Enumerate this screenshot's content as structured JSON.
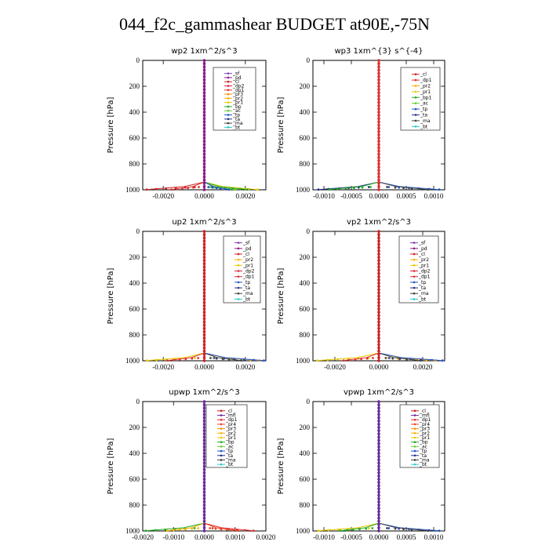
{
  "title": "044_f2c_gammashear  BUDGET at90E,-75N",
  "colors": {
    "sf": "#7f3fbf",
    "pd": "#8b1a8b",
    "cl": "#cc2222",
    "dp2": "#dd2244",
    "dp1": "#e03030",
    "pr3": "#ff8c00",
    "pr2": "#ffb000",
    "pr1": "#e6c800",
    "bp": "#22aa22",
    "ac": "#66cc33",
    "tp": "#2255cc",
    "ta": "#223388",
    "ma": "#444444",
    "bt": "#22cccc",
    "mfl": "#6a2a9a",
    "pr4": "#ee4422"
  },
  "chart_data": [
    {
      "type": "line",
      "title": "wp2  1xm^2/s^3",
      "ylabel": "Pressure [hPa]",
      "xlim": [
        -0.003,
        0.003
      ],
      "ylim": [
        1000,
        0
      ],
      "xticks": [
        "-0.0020",
        "0.0000",
        "0.0020"
      ],
      "xtick_values": [
        -0.002,
        0.0,
        0.002
      ],
      "yticks": [
        0,
        200,
        400,
        600,
        800,
        1000
      ],
      "legend": [
        "_sf",
        "_pd",
        "_cl",
        "_dp2",
        "_dp1",
        "_pr3",
        "_pr2",
        "_pr1",
        "_bp",
        "_ac",
        "_tp",
        "_ta",
        "_ma",
        "_bt"
      ],
      "series_keys": [
        "sf",
        "pd",
        "cl",
        "dp2",
        "dp1",
        "pr3",
        "pr2",
        "pr1",
        "bp",
        "ac",
        "tp",
        "ta",
        "ma",
        "bt"
      ],
      "surface": [
        {
          "key": "cl",
          "value": -0.0028
        },
        {
          "key": "dp1",
          "value": -0.0016
        },
        {
          "key": "pr1",
          "value": 0.0026
        },
        {
          "key": "bp",
          "value": 0.0021
        },
        {
          "key": "ac",
          "value": 0.0015
        },
        {
          "key": "tp",
          "value": 0.0012
        }
      ],
      "dominant": "pd"
    },
    {
      "type": "line",
      "title": "wp3  1xm^{3} s^{-4}",
      "ylabel": "Pressure [hPa]",
      "xlim": [
        -0.0012,
        0.0012
      ],
      "ylim": [
        1000,
        0
      ],
      "xticks": [
        "-0.0010",
        "-0.0005",
        "0.0000",
        "0.0005",
        "0.0010"
      ],
      "xtick_values": [
        -0.001,
        -0.0005,
        0.0,
        0.0005,
        0.001
      ],
      "yticks": [
        0,
        200,
        400,
        600,
        800,
        1000
      ],
      "legend": [
        "_cl",
        "_dp1",
        "_pr2",
        "_pr1",
        "_bp1",
        "_ac",
        "_tp",
        "_ta",
        "_ma",
        "_bt"
      ],
      "series_keys": [
        "cl",
        "dp1",
        "pr2",
        "pr1",
        "bp",
        "ac",
        "tp",
        "ta",
        "ma",
        "bt"
      ],
      "surface": [
        {
          "key": "tp",
          "value": 0.0011
        },
        {
          "key": "ta",
          "value": -0.0011
        },
        {
          "key": "bp",
          "value": -0.0009
        },
        {
          "key": "ma",
          "value": 0.0009
        }
      ],
      "dominant": "dp1"
    },
    {
      "type": "line",
      "title": "up2  1xm^2/s^3",
      "ylabel": "Pressure [hPa]",
      "xlim": [
        -0.003,
        0.003
      ],
      "ylim": [
        1000,
        0
      ],
      "xticks": [
        "-0.0020",
        "0.0000",
        "0.0020"
      ],
      "xtick_values": [
        -0.002,
        0.0,
        0.002
      ],
      "yticks": [
        0,
        200,
        400,
        600,
        800,
        1000
      ],
      "legend": [
        "_sf",
        "_pd",
        "_cl",
        "_pr2",
        "_pr1",
        "_dp2",
        "_dp1",
        "_tp",
        "_ta",
        "_ma",
        "_bt"
      ],
      "series_keys": [
        "sf",
        "pd",
        "cl",
        "pr2",
        "pr1",
        "dp2",
        "dp1",
        "tp",
        "ta",
        "ma",
        "bt"
      ],
      "surface": [
        {
          "key": "pr1",
          "value": -0.0028
        },
        {
          "key": "dp1",
          "value": -0.0018
        },
        {
          "key": "pr2",
          "value": 0.0027
        },
        {
          "key": "tp",
          "value": 0.0029
        },
        {
          "key": "ma",
          "value": 0.0018
        }
      ],
      "dominant": "cl"
    },
    {
      "type": "line",
      "title": "vp2  1xm^2/s^3",
      "ylabel": "Pressure [hPa]",
      "xlim": [
        -0.003,
        0.003
      ],
      "ylim": [
        1000,
        0
      ],
      "xticks": [
        "-0.0020",
        "0.0000",
        "0.0020"
      ],
      "xtick_values": [
        -0.002,
        0.0,
        0.002
      ],
      "yticks": [
        0,
        200,
        400,
        600,
        800,
        1000
      ],
      "legend": [
        "_sf",
        "_pd",
        "_cl",
        "_pr2",
        "_pr1",
        "_dp2",
        "_dp1",
        "_tp",
        "_ta",
        "_ma",
        "_bt"
      ],
      "series_keys": [
        "sf",
        "pd",
        "cl",
        "pr2",
        "pr1",
        "dp2",
        "dp1",
        "tp",
        "ta",
        "ma",
        "bt"
      ],
      "surface": [
        {
          "key": "pr1",
          "value": -0.0028
        },
        {
          "key": "dp1",
          "value": -0.0016
        },
        {
          "key": "pr2",
          "value": 0.0026
        },
        {
          "key": "tp",
          "value": 0.0029
        },
        {
          "key": "ma",
          "value": 0.0019
        }
      ],
      "dominant": "cl"
    },
    {
      "type": "line",
      "title": "upwp  1xm^2/s^3",
      "ylabel": "Pressure [hPa]",
      "xlim": [
        -0.002,
        0.002
      ],
      "ylim": [
        1000,
        0
      ],
      "xticks": [
        "-0.0020",
        "-0.0010",
        "0.0000",
        "0.0010",
        "0.0020"
      ],
      "xtick_values": [
        -0.002,
        -0.001,
        0.0,
        0.001,
        0.002
      ],
      "yticks": [
        0,
        200,
        400,
        600,
        800,
        1000
      ],
      "legend": [
        "_cl",
        "_mfl",
        "_dp1",
        "_pr4",
        "_pr3",
        "_pr2",
        "_pr1",
        "_bp",
        "_ac",
        "_tp",
        "_ta",
        "_ma",
        "_bt"
      ],
      "series_keys": [
        "cl",
        "mfl",
        "dp1",
        "pr4",
        "pr3",
        "pr2",
        "pr1",
        "bp",
        "ac",
        "tp",
        "ta",
        "ma",
        "bt"
      ],
      "surface": [
        {
          "key": "bp",
          "value": -0.0019
        },
        {
          "key": "pr2",
          "value": -0.0012
        },
        {
          "key": "dp1",
          "value": 0.0016
        },
        {
          "key": "pr4",
          "value": 0.0011
        }
      ],
      "dominant": "mfl"
    },
    {
      "type": "line",
      "title": "vpwp  1xm^2/s^3",
      "ylabel": "Pressure [hPa]",
      "xlim": [
        -0.0012,
        0.0012
      ],
      "ylim": [
        1000,
        0
      ],
      "xticks": [
        "-0.0010",
        "-0.0005",
        "0.0000",
        "0.0005",
        "0.0010"
      ],
      "xtick_values": [
        -0.001,
        -0.0005,
        0.0,
        0.0005,
        0.001
      ],
      "yticks": [
        0,
        200,
        400,
        600,
        800,
        1000
      ],
      "legend": [
        "_cl",
        "_mfl",
        "_dp1",
        "_pr4",
        "_pr3",
        "_pr2",
        "_pr1",
        "_bp",
        "_ac",
        "_tp",
        "_ta",
        "_ma",
        "_bt"
      ],
      "series_keys": [
        "cl",
        "mfl",
        "dp1",
        "pr4",
        "pr3",
        "pr2",
        "pr1",
        "bp",
        "ac",
        "tp",
        "ta",
        "ma",
        "bt"
      ],
      "surface": [
        {
          "key": "pr1",
          "value": -0.0011
        },
        {
          "key": "bp",
          "value": -0.0007
        },
        {
          "key": "tp",
          "value": 0.0011
        },
        {
          "key": "ma",
          "value": 0.0009
        }
      ],
      "dominant": "mfl"
    }
  ]
}
